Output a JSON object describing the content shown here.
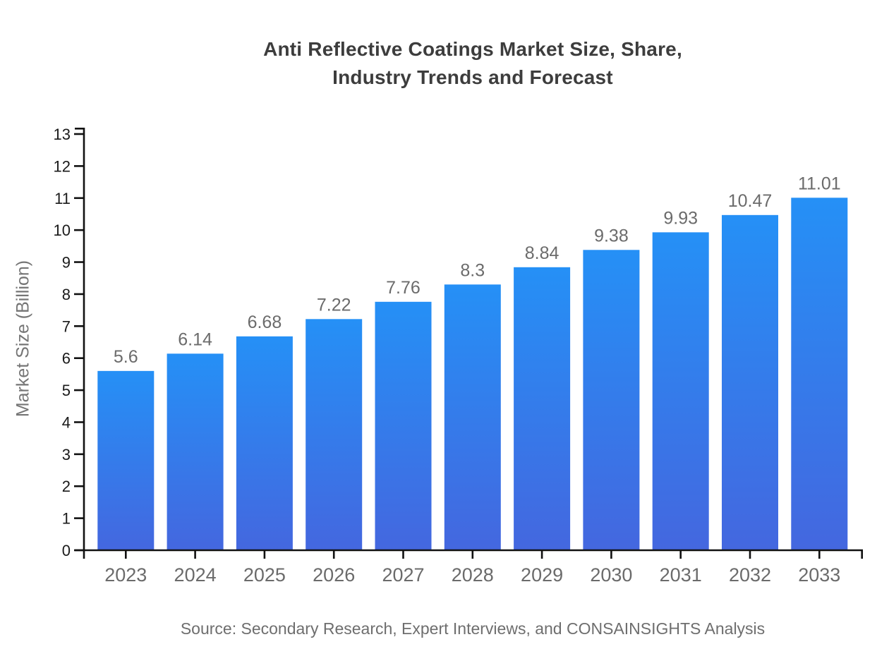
{
  "title": {
    "line1": "Anti Reflective Coatings Market Size, Share,",
    "line2": "Industry Trends and Forecast"
  },
  "source": "Source: Secondary Research, Expert Interviews, and CONSAINSIGHTS Analysis",
  "colors": {
    "bar_gradient_top": "#2590F6",
    "bar_gradient_bottom": "#4467DF",
    "title_text": "#3d3d3d",
    "axis_line": "#111111",
    "y_tick_label": "#1a1a1a",
    "category_label": "#6b6b6b",
    "value_label": "#6b6b6b",
    "axis_title": "#757575",
    "source_text": "#6e6e6e"
  },
  "chart_data": {
    "type": "bar",
    "title": "Anti Reflective Coatings Market Size, Share, Industry Trends and Forecast",
    "categories": [
      "2023",
      "2024",
      "2025",
      "2026",
      "2027",
      "2028",
      "2029",
      "2030",
      "2031",
      "2032",
      "2033"
    ],
    "values": [
      5.6,
      6.14,
      6.68,
      7.22,
      7.76,
      8.3,
      8.84,
      9.38,
      9.93,
      10.47,
      11.01
    ],
    "value_labels": [
      "5.6",
      "6.14",
      "6.68",
      "7.22",
      "7.76",
      "8.3",
      "8.84",
      "9.38",
      "9.93",
      "10.47",
      "11.01"
    ],
    "xlabel": "",
    "ylabel": "Market Size (Billion)",
    "ylim": [
      0,
      13
    ],
    "ytick_step": 1,
    "yticks": [
      0,
      1,
      2,
      3,
      4,
      5,
      6,
      7,
      8,
      9,
      10,
      11,
      12,
      13
    ],
    "grid": false,
    "legend": "none",
    "bar_value_labels_shown": true
  }
}
